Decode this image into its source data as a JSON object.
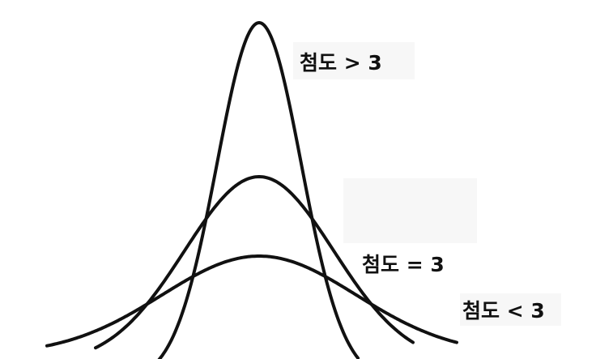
{
  "curves": [
    {
      "label": "첨도 > 3"
    },
    {
      "label": "첨도 = 3"
    },
    {
      "label": "첨도 < 3"
    }
  ]
}
